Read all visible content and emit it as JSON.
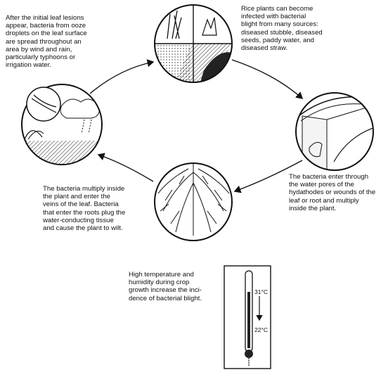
{
  "cycle": {
    "stage_sources": {
      "text": "Rice plants can become\ninfected with bacterial\nblight from many sources:\ndiseased stubble, diseased\nseeds, paddy water, and\ndiseased straw."
    },
    "stage_entry": {
      "text": "The bacteria enter through\nthe water pores of the\nhydathodes or wounds of the\nleaf or root and multiply\ninside the plant."
    },
    "stage_multiply": {
      "text": "The bacteria multiply inside\nthe plant and enter the\nveins of the leaf. Bacteria\nthat enter the roots plug the\nwater-conducting tissue\nand cause the plant to wilt."
    },
    "stage_spread": {
      "text": "After the initial leaf lesions\nappear, bacteria from ooze\ndroplets on the leaf surface\nare spread throughout an\narea by wind and rain,\nparticularly typhoons or\nirrigation water."
    }
  },
  "thermometer_note": {
    "text": "High temperature and\nhumidity during crop\ngrowth increase the inci-\ndence of bacterial blight.",
    "high_label": "31°C",
    "low_label": "22°C"
  },
  "colors": {
    "ink": "#111111",
    "background": "#ffffff"
  }
}
